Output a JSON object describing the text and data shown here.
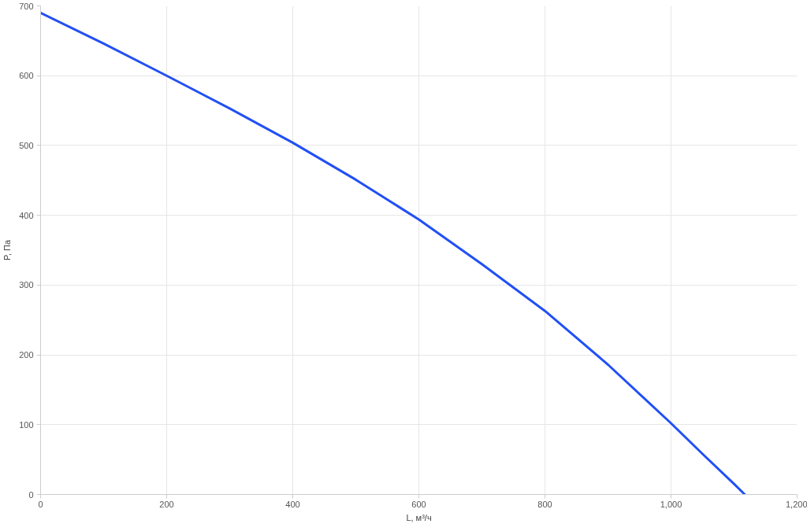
{
  "chart_data": {
    "type": "line",
    "xlabel": "L, м³/ч",
    "ylabel": "P, Па",
    "series": [
      {
        "color": "#2150f5",
        "x": [
          0,
          100,
          200,
          300,
          400,
          500,
          600,
          700,
          800,
          900,
          1000,
          1050,
          1100,
          1117
        ],
        "values": [
          690,
          646,
          600,
          553,
          504,
          451,
          394,
          330,
          263,
          186,
          102,
          58,
          15,
          0
        ]
      }
    ],
    "xlim": [
      0,
      1200
    ],
    "xticks": [
      0,
      200,
      400,
      600,
      800,
      {
        "value": 1000,
        "label": "1,000"
      },
      {
        "value": 1200,
        "label": "1,200"
      }
    ],
    "ylim": [
      0,
      700
    ],
    "yticks": [
      0,
      100,
      200,
      300,
      400,
      500,
      600,
      700
    ],
    "grid": true,
    "line_style": "solid"
  }
}
